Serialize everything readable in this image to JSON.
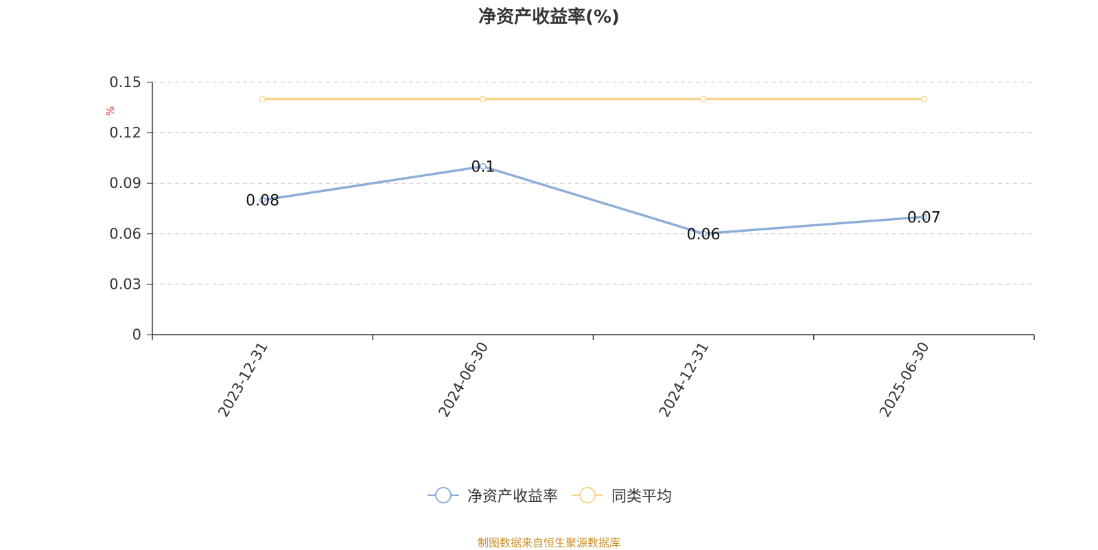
{
  "chart_data": {
    "type": "line",
    "title": "净资产收益率(%)",
    "ylabel": "%",
    "categories": [
      "2023-12-31",
      "2024-06-30",
      "2024-12-31",
      "2025-06-30"
    ],
    "ylim": [
      0,
      0.15
    ],
    "yticks": [
      "0",
      "0.03",
      "0.06",
      "0.09",
      "0.12",
      "0.15"
    ],
    "grid": true,
    "legend_position": "bottom",
    "series": [
      {
        "name": "净资产收益率",
        "values": [
          0.08,
          0.1,
          0.06,
          0.07
        ],
        "labels": [
          "0.08",
          "0.1",
          "0.06",
          "0.07"
        ],
        "color": "#8eaed8"
      },
      {
        "name": "同类平均",
        "values": [
          0.14,
          0.14,
          0.14,
          0.14
        ],
        "color": "#f8d58c"
      }
    ]
  },
  "footer": {
    "source": "制图数据来自恒生聚源数据库"
  }
}
